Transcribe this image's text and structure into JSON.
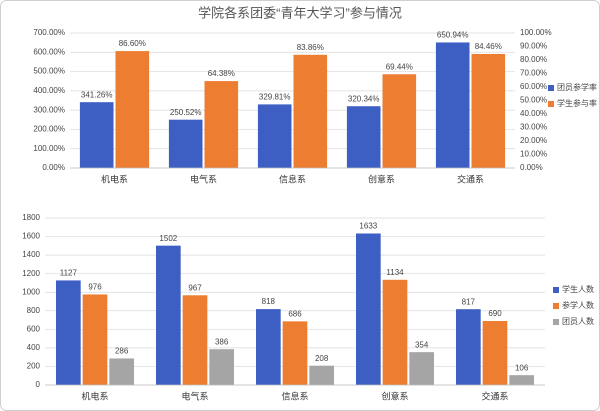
{
  "chart_data": [
    {
      "type": "bar",
      "title": "学院各系团委“青年大学习”参与情况",
      "categories": [
        "机电系",
        "电气系",
        "信息系",
        "创意系",
        "交通系"
      ],
      "series": [
        {
          "name": "团员参学率",
          "color": "#3d5fc4",
          "values": [
            341.26,
            250.52,
            329.81,
            320.34,
            650.94
          ],
          "value_labels": [
            "341.26%",
            "250.52%",
            "329.81%",
            "320.34%",
            "650.94%"
          ]
        },
        {
          "name": "学生参与率",
          "color": "#ed7d31",
          "axis": "y2",
          "values": [
            86.6,
            64.38,
            83.86,
            69.44,
            84.46
          ],
          "value_labels": [
            "86.60%",
            "64.38%",
            "83.86%",
            "69.44%",
            "84.46%"
          ]
        }
      ],
      "ylim": [
        0,
        700
      ],
      "yticks": [
        {
          "value": 0,
          "label": "0.00%"
        },
        {
          "value": 100,
          "label": "100.00%"
        },
        {
          "value": 200,
          "label": "200.00%"
        },
        {
          "value": 300,
          "label": "300.00%"
        },
        {
          "value": 400,
          "label": "400.00%"
        },
        {
          "value": 500,
          "label": "500.00%"
        },
        {
          "value": 600,
          "label": "600.00%"
        },
        {
          "value": 700,
          "label": "700.00%"
        }
      ],
      "y2lim": [
        0,
        100
      ],
      "y2ticks": [
        {
          "value": 0,
          "label": "0.00%"
        },
        {
          "value": 10,
          "label": "10.00%"
        },
        {
          "value": 20,
          "label": "20.00%"
        },
        {
          "value": 30,
          "label": "30.00%"
        },
        {
          "value": 40,
          "label": "40.00%"
        },
        {
          "value": 50,
          "label": "50.00%"
        },
        {
          "value": 60,
          "label": "60.00%"
        },
        {
          "value": 70,
          "label": "70.00%"
        },
        {
          "value": 80,
          "label": "80.00%"
        },
        {
          "value": 90,
          "label": "90.00%"
        },
        {
          "value": 100,
          "label": "100.00%"
        }
      ],
      "grid": true,
      "legend": "right"
    },
    {
      "type": "bar",
      "categories": [
        "机电系",
        "电气系",
        "信息系",
        "创意系",
        "交通系"
      ],
      "series": [
        {
          "name": "学生人数",
          "color": "#3d5fc4",
          "values": [
            1127,
            1502,
            818,
            1633,
            817
          ]
        },
        {
          "name": "参学人数",
          "color": "#ed7d31",
          "values": [
            976,
            967,
            686,
            1134,
            690
          ]
        },
        {
          "name": "团员人数",
          "color": "#a5a5a5",
          "values": [
            286,
            386,
            208,
            354,
            106
          ]
        }
      ],
      "ylim": [
        0,
        1800
      ],
      "yticks": [
        0,
        200,
        400,
        600,
        800,
        1000,
        1200,
        1400,
        1600,
        1800
      ],
      "grid": true,
      "legend": "right"
    }
  ]
}
